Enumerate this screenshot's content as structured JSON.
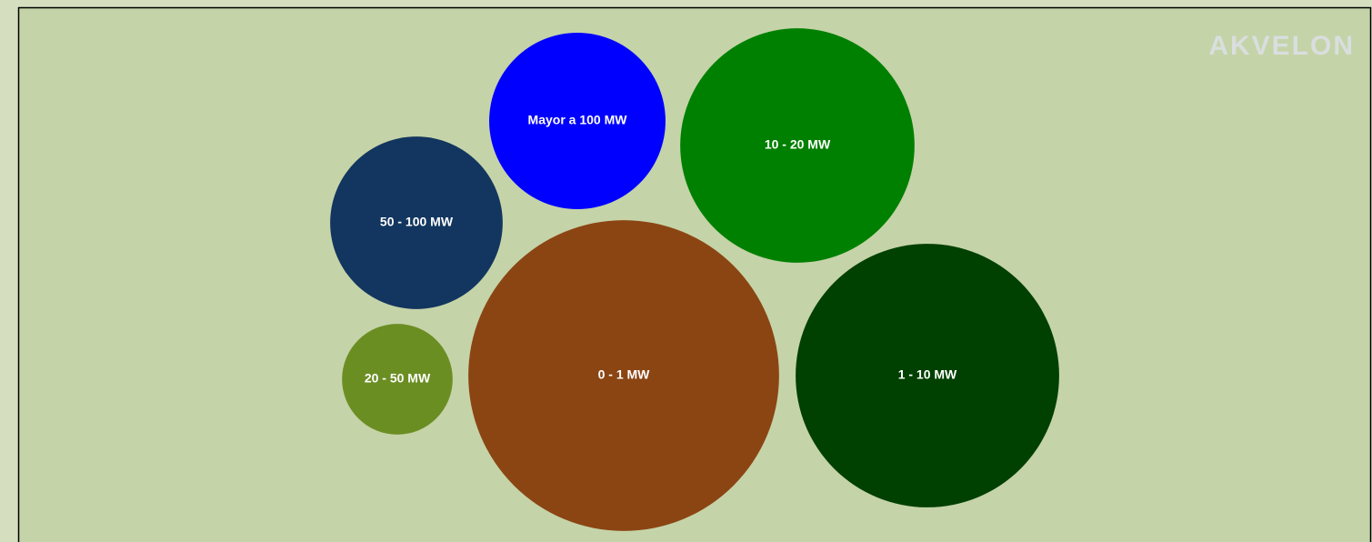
{
  "chart_data": {
    "type": "bubble",
    "watermark": "AKVELON",
    "categories": [
      "Mayor a 100 MW",
      "10 - 20 MW",
      "50 - 100 MW",
      "0 - 1 MW",
      "1 - 10 MW",
      "20 - 50 MW"
    ],
    "values": [
      94,
      166,
      90,
      292,
      210,
      37
    ],
    "colors": [
      "#0000ff",
      "#008000",
      "#12365f",
      "#8b4513",
      "#004000",
      "#6b8e23"
    ]
  }
}
